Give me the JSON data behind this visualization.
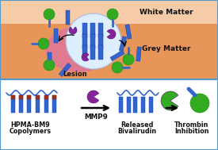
{
  "fig_width": 2.75,
  "fig_height": 1.89,
  "dpi": 100,
  "white_matter_color": "#f5cba8",
  "grey_matter_color": "#e8955a",
  "lesion_pink_color": "#e07898",
  "implant_color": "#ddeeff",
  "border_color": "#5599cc",
  "blue_color": "#3366cc",
  "dark_blue_color": "#1133aa",
  "green_color": "#33aa22",
  "purple_color": "#882299",
  "white_matter_text": "White Matter",
  "grey_matter_text": "Grey Matter",
  "lesion_text": "Lesion",
  "hpma_text1": "HPMA-BM9",
  "hpma_text2": "Copolymers",
  "mmp9_text": "MMP9",
  "released_text1": "Released",
  "released_text2": "Bivalirudin",
  "thrombin_text1": "Thrombin",
  "thrombin_text2": "Inhibition",
  "font_size_label": 5.8,
  "font_size_region": 6.5
}
